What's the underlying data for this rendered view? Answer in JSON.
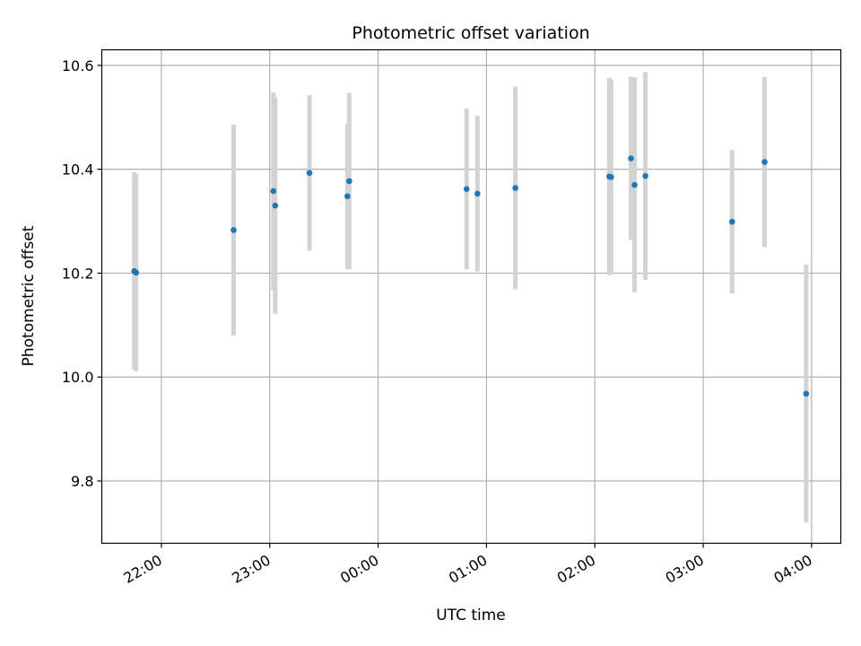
{
  "chart_data": {
    "type": "scatter",
    "title": "Photometric offset variation",
    "xlabel": "UTC time",
    "ylabel": "Photometric offset",
    "x_tick_labels": [
      "22:00",
      "23:00",
      "00:00",
      "01:00",
      "02:00",
      "03:00",
      "04:00"
    ],
    "x_ticks_hours": [
      22,
      23,
      24,
      25,
      26,
      27,
      28
    ],
    "xlim_hours": [
      21.45,
      28.27
    ],
    "y_tick_labels": [
      "9.8",
      "10.0",
      "10.2",
      "10.4",
      "10.6"
    ],
    "y_ticks": [
      9.8,
      10.0,
      10.2,
      10.4,
      10.6
    ],
    "ylim": [
      9.68,
      10.63
    ],
    "grid": true,
    "colors": {
      "point": "#1f77b4",
      "errorbar": "#d3d3d3",
      "grid": "#b0b0b0"
    },
    "points": [
      {
        "time": "21:45",
        "y": 10.204,
        "yerr": 0.19
      },
      {
        "time": "21:46",
        "y": 10.201,
        "yerr": 0.19
      },
      {
        "time": "22:40",
        "y": 10.283,
        "yerr": 0.203
      },
      {
        "time": "23:02",
        "y": 10.358,
        "yerr": 0.19
      },
      {
        "time": "23:03",
        "y": 10.33,
        "yerr": 0.208
      },
      {
        "time": "23:22",
        "y": 10.393,
        "yerr": 0.15
      },
      {
        "time": "23:43",
        "y": 10.348,
        "yerr": 0.14
      },
      {
        "time": "23:44",
        "y": 10.377,
        "yerr": 0.17
      },
      {
        "time": "00:49",
        "y": 10.362,
        "yerr": 0.155
      },
      {
        "time": "00:55",
        "y": 10.353,
        "yerr": 0.15
      },
      {
        "time": "01:16",
        "y": 10.364,
        "yerr": 0.195
      },
      {
        "time": "02:08",
        "y": 10.386,
        "yerr": 0.19
      },
      {
        "time": "02:09",
        "y": 10.385,
        "yerr": 0.187
      },
      {
        "time": "02:20",
        "y": 10.421,
        "yerr": 0.157
      },
      {
        "time": "02:22",
        "y": 10.37,
        "yerr": 0.207
      },
      {
        "time": "02:28",
        "y": 10.387,
        "yerr": 0.2
      },
      {
        "time": "03:16",
        "y": 10.299,
        "yerr": 0.138
      },
      {
        "time": "03:34",
        "y": 10.414,
        "yerr": 0.164
      },
      {
        "time": "03:57",
        "y": 9.968,
        "yerr": 0.248
      }
    ]
  }
}
